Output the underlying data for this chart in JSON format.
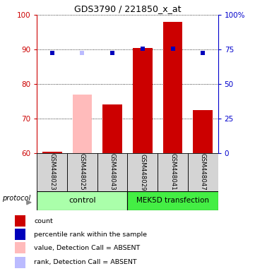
{
  "title": "GDS3790 / 221850_x_at",
  "samples": [
    "GSM448023",
    "GSM448025",
    "GSM448043",
    "GSM448029",
    "GSM448041",
    "GSM448047"
  ],
  "bar_values": [
    60.5,
    77.0,
    74.0,
    90.5,
    98.0,
    72.5
  ],
  "bar_colors": [
    "#cc0000",
    "#ffbbbb",
    "#cc0000",
    "#cc0000",
    "#cc0000",
    "#cc0000"
  ],
  "rank_right_vals": [
    72.5,
    72.5,
    72.5,
    75.5,
    75.5,
    72.5
  ],
  "rank_colors": [
    "#0000bb",
    "#bbbbff",
    "#0000bb",
    "#0000bb",
    "#0000bb",
    "#0000bb"
  ],
  "ylim_left": [
    60,
    100
  ],
  "ylim_right": [
    0,
    100
  ],
  "yticks_left": [
    60,
    70,
    80,
    90,
    100
  ],
  "yticks_right": [
    0,
    25,
    50,
    75,
    100
  ],
  "ytick_labels_right": [
    "0",
    "25",
    "50",
    "75",
    "100%"
  ],
  "left_axis_color": "#cc0000",
  "right_axis_color": "#0000cc",
  "legend_items": [
    {
      "label": "count",
      "color": "#cc0000"
    },
    {
      "label": "percentile rank within the sample",
      "color": "#0000bb"
    },
    {
      "label": "value, Detection Call = ABSENT",
      "color": "#ffbbbb"
    },
    {
      "label": "rank, Detection Call = ABSENT",
      "color": "#bbbbff"
    }
  ],
  "control_color": "#aaffaa",
  "mek_color": "#44ee44",
  "sample_box_color": "#d4d4d4",
  "group_border_color": "#000000"
}
